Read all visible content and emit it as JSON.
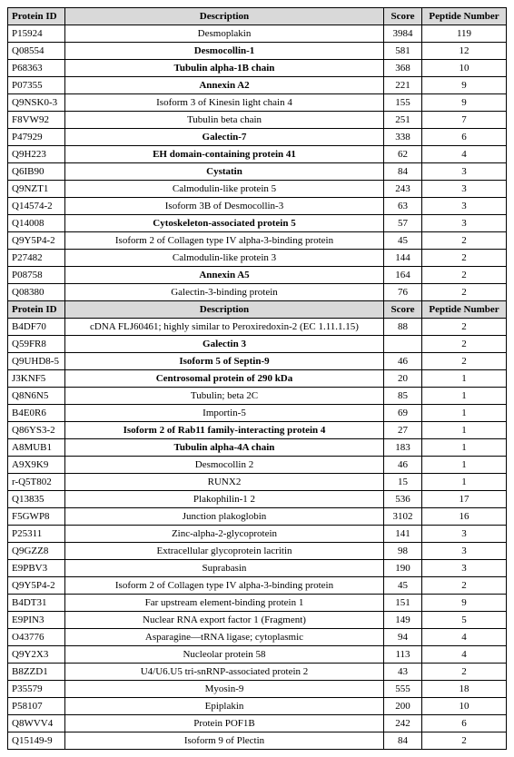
{
  "headers": {
    "id": "Protein ID",
    "desc": "Description",
    "score": "Score",
    "pep": "Peptide Number"
  },
  "rows1": [
    {
      "id": "P15924",
      "desc": "Desmoplakin",
      "score": "3984",
      "pep": "119",
      "bold": false
    },
    {
      "id": "Q08554",
      "desc": "Desmocollin-1",
      "score": "581",
      "pep": "12",
      "bold": true
    },
    {
      "id": "P68363",
      "desc": "Tubulin alpha-1B chain",
      "score": "368",
      "pep": "10",
      "bold": true
    },
    {
      "id": "P07355",
      "desc": "Annexin A2",
      "score": "221",
      "pep": "9",
      "bold": true
    },
    {
      "id": "Q9NSK0-3",
      "desc": "Isoform 3 of Kinesin light chain 4",
      "score": "155",
      "pep": "9",
      "bold": false
    },
    {
      "id": "F8VW92",
      "desc": "Tubulin beta chain",
      "score": "251",
      "pep": "7",
      "bold": false
    },
    {
      "id": "P47929",
      "desc": "Galectin-7",
      "score": "338",
      "pep": "6",
      "bold": true
    },
    {
      "id": "Q9H223",
      "desc": "EH domain-containing protein 41",
      "score": "62",
      "pep": "4",
      "bold": true
    },
    {
      "id": "Q6IB90",
      "desc": "Cystatin",
      "score": "84",
      "pep": "3",
      "bold": true
    },
    {
      "id": "Q9NZT1",
      "desc": "Calmodulin-like protein 5",
      "score": "243",
      "pep": "3",
      "bold": false
    },
    {
      "id": "Q14574-2",
      "desc": "Isoform 3B of Desmocollin-3",
      "score": "63",
      "pep": "3",
      "bold": false
    },
    {
      "id": "Q14008",
      "desc": "Cytoskeleton-associated protein 5",
      "score": "57",
      "pep": "3",
      "bold": true
    },
    {
      "id": "Q9Y5P4-2",
      "desc": "Isoform 2 of Collagen type IV alpha-3-binding protein",
      "score": "45",
      "pep": "2",
      "bold": false
    },
    {
      "id": "P27482",
      "desc": "Calmodulin-like protein 3",
      "score": "144",
      "pep": "2",
      "bold": false
    },
    {
      "id": "P08758",
      "desc": "Annexin A5",
      "score": "164",
      "pep": "2",
      "bold": true
    },
    {
      "id": "Q08380",
      "desc": "Galectin-3-binding protein",
      "score": "76",
      "pep": "2",
      "bold": false
    }
  ],
  "rows2": [
    {
      "id": "B4DF70",
      "desc": "cDNA FLJ60461; highly similar to Peroxiredoxin-2 (EC 1.11.1.15)",
      "score": "88",
      "pep": "2",
      "bold": false
    },
    {
      "id": "Q59FR8",
      "desc": "Galectin 3",
      "score": "",
      "pep": "2",
      "bold": true
    },
    {
      "id": "Q9UHD8-5",
      "desc": "Isoform 5 of Septin-9",
      "score": "46",
      "pep": "2",
      "bold": true
    },
    {
      "id": "J3KNF5",
      "desc": "Centrosomal protein of 290 kDa",
      "score": "20",
      "pep": "1",
      "bold": true
    },
    {
      "id": "Q8N6N5",
      "desc": "Tubulin; beta 2C",
      "score": "85",
      "pep": "1",
      "bold": false
    },
    {
      "id": "B4E0R6",
      "desc": "Importin-5",
      "score": "69",
      "pep": "1",
      "bold": false
    },
    {
      "id": "Q86YS3-2",
      "desc": "Isoform 2 of Rab11 family-interacting protein 4",
      "score": "27",
      "pep": "1",
      "bold": true
    },
    {
      "id": "A8MUB1",
      "desc": "Tubulin alpha-4A chain",
      "score": "183",
      "pep": "1",
      "bold": true
    },
    {
      "id": "A9X9K9",
      "desc": "Desmocollin 2",
      "score": "46",
      "pep": "1",
      "bold": false
    },
    {
      "id": "r-Q5T802",
      "desc": "RUNX2",
      "score": "15",
      "pep": "1",
      "bold": false
    },
    {
      "id": "Q13835",
      "desc": "Plakophilin-1 2",
      "score": "536",
      "pep": "17",
      "bold": false
    },
    {
      "id": "F5GWP8",
      "desc": "Junction plakoglobin",
      "score": "3102",
      "pep": "16",
      "bold": false
    },
    {
      "id": "P25311",
      "desc": "Zinc-alpha-2-glycoprotein",
      "score": "141",
      "pep": "3",
      "bold": false
    },
    {
      "id": "Q9GZZ8",
      "desc": "Extracellular glycoprotein lacritin",
      "score": "98",
      "pep": "3",
      "bold": false
    },
    {
      "id": "E9PBV3",
      "desc": "Suprabasin",
      "score": "190",
      "pep": "3",
      "bold": false
    },
    {
      "id": "Q9Y5P4-2",
      "desc": "Isoform 2 of Collagen type IV alpha-3-binding protein",
      "score": "45",
      "pep": "2",
      "bold": false
    },
    {
      "id": "B4DT31",
      "desc": "Far upstream element-binding protein 1",
      "score": "151",
      "pep": "9",
      "bold": false
    },
    {
      "id": "E9PIN3",
      "desc": "Nuclear RNA export factor 1 (Fragment)",
      "score": "149",
      "pep": "5",
      "bold": false
    },
    {
      "id": "O43776",
      "desc": "Asparagine—tRNA ligase; cytoplasmic",
      "score": "94",
      "pep": "4",
      "bold": false
    },
    {
      "id": "Q9Y2X3",
      "desc": "Nucleolar protein 58",
      "score": "113",
      "pep": "4",
      "bold": false
    },
    {
      "id": "B8ZZD1",
      "desc": "U4/U6.U5 tri-snRNP-associated protein 2",
      "score": "43",
      "pep": "2",
      "bold": false
    },
    {
      "id": "P35579",
      "desc": "Myosin-9",
      "score": "555",
      "pep": "18",
      "bold": false
    },
    {
      "id": "P58107",
      "desc": "Epiplakin",
      "score": "200",
      "pep": "10",
      "bold": false
    },
    {
      "id": "Q8WVV4",
      "desc": "Protein POF1B",
      "score": "242",
      "pep": "6",
      "bold": false
    },
    {
      "id": "Q15149-9",
      "desc": "Isoform 9 of Plectin",
      "score": "84",
      "pep": "2",
      "bold": false
    }
  ]
}
